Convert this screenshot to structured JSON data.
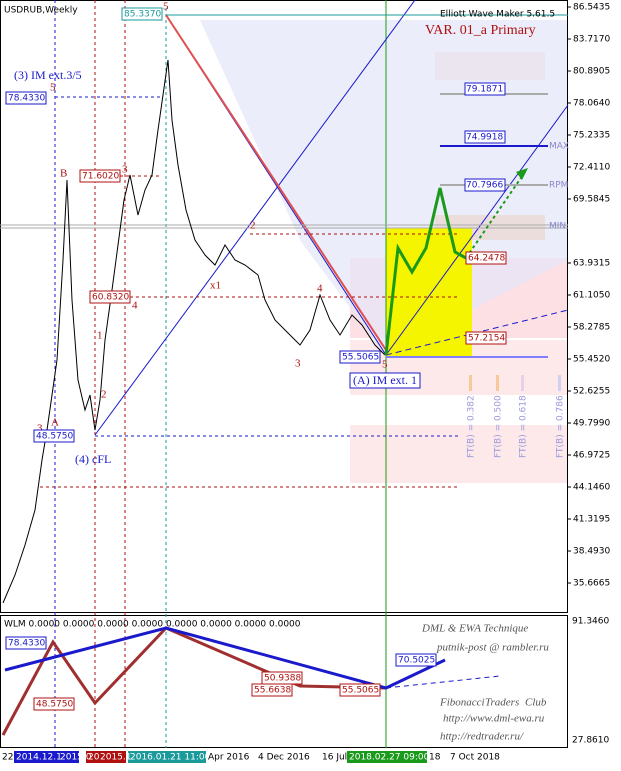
{
  "header": {
    "symbol": "USDRUB,Weekly",
    "indicator": "Elliott Wave Maker 5.61.5",
    "variant": "VAR. 01_a Primary"
  },
  "price_axis": [
    "86.5435",
    "83.7170",
    "80.8905",
    "78.0640",
    "75.2335",
    "72.4110",
    "69.5845",
    "63.9315",
    "61.1050",
    "58.2785",
    "55.4520",
    "52.6255",
    "49.7990",
    "46.9725",
    "44.1460",
    "41.3195",
    "38.4930",
    "35.6665"
  ],
  "indicator_axis": [
    "91.3460",
    "27.8610"
  ],
  "time_axis": [
    "22",
    "2014.12.1",
    "2015.0",
    "20",
    "2015.1",
    "2016.01.21 11:00",
    "Apr 2016",
    "4 Dec 2016",
    "16 Jul",
    "2018.02.27 09:00",
    "18",
    "7 Oct 2018"
  ],
  "wave_labels": {
    "impulse3": "(3) IM ext.3/5",
    "wave4": "(4) cFL",
    "waveA": "(A) IM ext. 1",
    "w5": "5",
    "wB": "B",
    "wA": "A",
    "w3": "3",
    "s1": "1",
    "s2": "2",
    "s3": "3",
    "s4": "4",
    "x1": "x1",
    "m2": "2",
    "m3": "3",
    "m4": "4",
    "m5": "5",
    "r5": "5"
  },
  "price_tags": [
    "85.3370",
    "78.4330",
    "71.6020",
    "60.8320",
    "48.5750",
    "55.5065",
    "64.2478",
    "57.2154"
  ],
  "levels": [
    "79.1871",
    "74.9918",
    "70.7966",
    "MAX",
    "RPM",
    "MIN"
  ],
  "fib": [
    "FT(B) = 0.382",
    "FT(B) = 0.500",
    "FT(B) = 0.618",
    "FT(B) = 0.786"
  ],
  "panel": {
    "header": "WLM 0.0000 0.0000 0.0000 0.0000 0.0000 0.0000 0.0000 0.0000",
    "tags": [
      "78.4330",
      "48.5750",
      "50.9388",
      "55.6638",
      "55.5065",
      "70.5025"
    ],
    "credits": [
      "DML & EWA Technique",
      "putnik-post @ rambler.ru",
      "Fibonacci",
      "Traders",
      "Club",
      "http://www.dml-ewa.ru",
      "http://redtrader.ru/"
    ]
  }
}
